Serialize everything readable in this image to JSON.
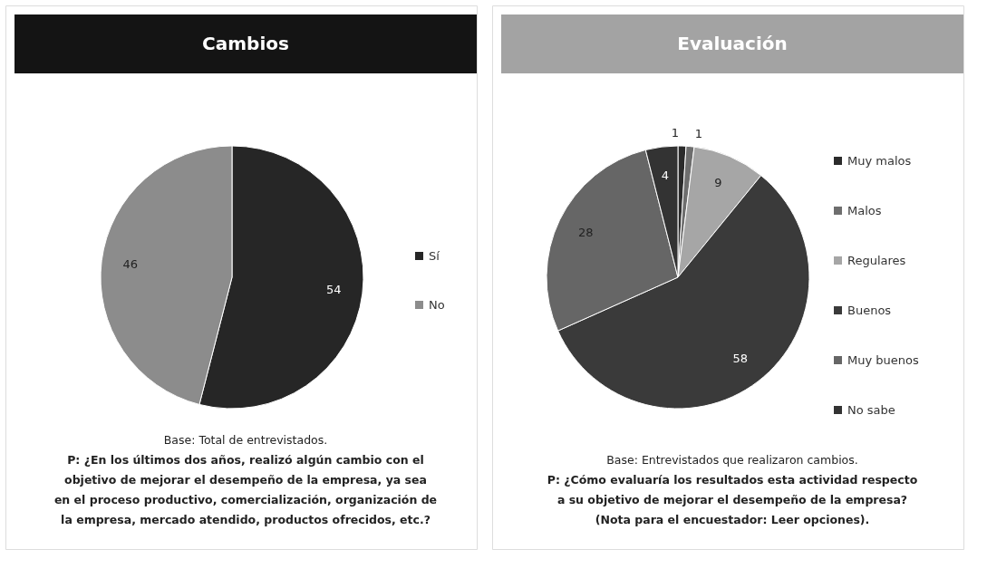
{
  "chart_data": [
    {
      "type": "pie",
      "title": "Cambios",
      "categories": [
        "Sí",
        "No"
      ],
      "values": [
        54,
        46
      ],
      "colors": [
        "#262626",
        "#8c8c8c"
      ],
      "data_labels": true,
      "legend": "right",
      "annotations": [
        "Base:  Total de entrevistados.",
        "P: ¿En los últimos dos años, realizó algún cambio con el",
        "objetivo de mejorar el desempeño de la empresa, ya sea",
        "en el proceso productivo, comercialización, organización de",
        "la empresa, mercado atendido, productos ofrecidos, etc.?"
      ]
    },
    {
      "type": "pie",
      "title": "Evaluación",
      "categories": [
        "Muy malos",
        "Malos",
        "Regulares",
        "Buenos",
        "Muy buenos",
        "No sabe"
      ],
      "values": [
        1,
        1,
        9,
        58,
        28,
        4
      ],
      "colors": [
        "#2b2b2b",
        "#6e6e6e",
        "#a6a6a6",
        "#3a3a3a",
        "#666666",
        "#333333"
      ],
      "data_labels": true,
      "legend": "right",
      "annotations": [
        "Base: Entrevistados que realizaron cambios.",
        "P: ¿Cómo evaluaría los resultados esta actividad respecto",
        "a su objetivo de mejorar el desempeño de la empresa?",
        "(Nota para el encuestador: Leer opciones)."
      ]
    }
  ]
}
